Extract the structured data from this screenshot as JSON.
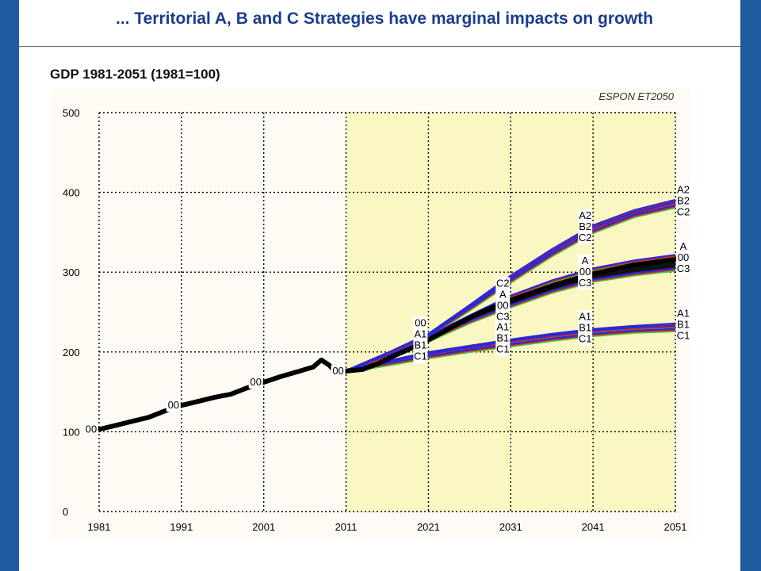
{
  "slide": {
    "title": "... Territorial A, B and C Strategies have marginal impacts on growth"
  },
  "chart_data": {
    "type": "line",
    "title": "GDP 1981-2051 (1981=100)",
    "watermark": "ESPON ET2050",
    "xlabel": "",
    "ylabel": "",
    "xlim": [
      1981,
      2051
    ],
    "ylim": [
      0,
      500
    ],
    "x_ticks": [
      1981,
      1991,
      2001,
      2011,
      2021,
      2031,
      2041,
      2051
    ],
    "y_ticks": [
      0,
      100,
      200,
      300,
      400,
      500
    ],
    "grid": true,
    "forecast_region": {
      "from": 2011,
      "to": 2051,
      "color": "#fbf7c3"
    },
    "colors": {
      "blue": "#2929d6",
      "red": "#d6262a",
      "green": "#3ad13a",
      "black": "#000000",
      "background": "#fdfbf4"
    },
    "series": [
      {
        "name": "00",
        "points": [
          [
            1981,
            103
          ],
          [
            1983,
            108
          ],
          [
            1985,
            113
          ],
          [
            1987,
            118
          ],
          [
            1989,
            126
          ],
          [
            1991,
            133
          ],
          [
            1993,
            138
          ],
          [
            1995,
            143
          ],
          [
            1997,
            147
          ],
          [
            1999,
            155
          ],
          [
            2001,
            162
          ],
          [
            2003,
            169
          ],
          [
            2005,
            175
          ],
          [
            2007,
            181
          ],
          [
            2008,
            190
          ],
          [
            2009,
            183
          ],
          [
            2010,
            172
          ],
          [
            2011,
            176
          ],
          [
            2013,
            178
          ],
          [
            2015,
            186
          ],
          [
            2017,
            196
          ],
          [
            2019,
            205
          ],
          [
            2021,
            215
          ],
          [
            2024,
            232
          ],
          [
            2027,
            248
          ],
          [
            2031,
            265
          ],
          [
            2036,
            283
          ],
          [
            2041,
            298
          ],
          [
            2046,
            309
          ],
          [
            2051,
            316
          ]
        ]
      },
      {
        "name": "A2",
        "points": [
          [
            2011,
            176
          ],
          [
            2016,
            198
          ],
          [
            2021,
            222
          ],
          [
            2026,
            258
          ],
          [
            2031,
            295
          ],
          [
            2036,
            328
          ],
          [
            2041,
            358
          ],
          [
            2046,
            377
          ],
          [
            2051,
            390
          ]
        ]
      },
      {
        "name": "B2",
        "points": [
          [
            2011,
            176
          ],
          [
            2016,
            197
          ],
          [
            2021,
            221
          ],
          [
            2026,
            256
          ],
          [
            2031,
            292
          ],
          [
            2036,
            325
          ],
          [
            2041,
            355
          ],
          [
            2046,
            374
          ],
          [
            2051,
            387
          ]
        ]
      },
      {
        "name": "C2",
        "points": [
          [
            2011,
            176
          ],
          [
            2016,
            196
          ],
          [
            2021,
            220
          ],
          [
            2026,
            254
          ],
          [
            2031,
            289
          ],
          [
            2036,
            322
          ],
          [
            2041,
            351
          ],
          [
            2046,
            371
          ],
          [
            2051,
            383
          ]
        ]
      },
      {
        "name": "A",
        "points": [
          [
            2011,
            176
          ],
          [
            2016,
            198
          ],
          [
            2021,
            219
          ],
          [
            2026,
            245
          ],
          [
            2031,
            270
          ],
          [
            2036,
            289
          ],
          [
            2041,
            304
          ],
          [
            2046,
            314
          ],
          [
            2051,
            321
          ]
        ]
      },
      {
        "name": "C3",
        "points": [
          [
            2011,
            176
          ],
          [
            2016,
            195
          ],
          [
            2021,
            215
          ],
          [
            2026,
            238
          ],
          [
            2031,
            258
          ],
          [
            2036,
            276
          ],
          [
            2041,
            290
          ],
          [
            2046,
            298
          ],
          [
            2051,
            304
          ]
        ]
      },
      {
        "name": "A1",
        "points": [
          [
            2011,
            177
          ],
          [
            2016,
            188
          ],
          [
            2021,
            199
          ],
          [
            2026,
            207
          ],
          [
            2031,
            215
          ],
          [
            2036,
            222
          ],
          [
            2041,
            228
          ],
          [
            2046,
            232
          ],
          [
            2051,
            235
          ]
        ]
      },
      {
        "name": "B1",
        "points": [
          [
            2011,
            177
          ],
          [
            2016,
            187
          ],
          [
            2021,
            197
          ],
          [
            2026,
            205
          ],
          [
            2031,
            213
          ],
          [
            2036,
            220
          ],
          [
            2041,
            226
          ],
          [
            2046,
            230
          ],
          [
            2051,
            232
          ]
        ]
      },
      {
        "name": "C1",
        "points": [
          [
            2011,
            176
          ],
          [
            2016,
            185
          ],
          [
            2021,
            194
          ],
          [
            2026,
            202
          ],
          [
            2031,
            209
          ],
          [
            2036,
            216
          ],
          [
            2041,
            222
          ],
          [
            2046,
            226
          ],
          [
            2051,
            228
          ]
        ]
      }
    ],
    "point_labels": [
      {
        "x": 1981,
        "y": 103,
        "lines": [
          "00"
        ]
      },
      {
        "x": 1991,
        "y": 133,
        "lines": [
          "00"
        ]
      },
      {
        "x": 2001,
        "y": 162,
        "lines": [
          "00"
        ]
      },
      {
        "x": 2011,
        "y": 176,
        "lines": [
          "00"
        ]
      },
      {
        "x": 2021,
        "y": 215,
        "lines": [
          "00",
          "A1",
          "B1",
          "C1"
        ]
      },
      {
        "x": 2031,
        "y": 265,
        "lines": [
          "C2",
          "A",
          "00",
          "C3"
        ]
      },
      {
        "x": 2031,
        "y": 215,
        "lines": [
          "A1",
          "B1",
          "C1"
        ]
      },
      {
        "x": 2041,
        "y": 355,
        "lines": [
          "A2",
          "B2",
          "C2"
        ]
      },
      {
        "x": 2041,
        "y": 298,
        "lines": [
          "A",
          "00",
          "C3"
        ]
      },
      {
        "x": 2041,
        "y": 228,
        "lines": [
          "A1",
          "B1",
          "C1"
        ]
      },
      {
        "x": 2051,
        "y": 387,
        "lines": [
          "A2",
          "B2",
          "C2"
        ]
      },
      {
        "x": 2051,
        "y": 316,
        "lines": [
          "A",
          "00",
          "C3"
        ]
      },
      {
        "x": 2051,
        "y": 232,
        "lines": [
          "A1",
          "B1",
          "C1"
        ]
      }
    ]
  }
}
